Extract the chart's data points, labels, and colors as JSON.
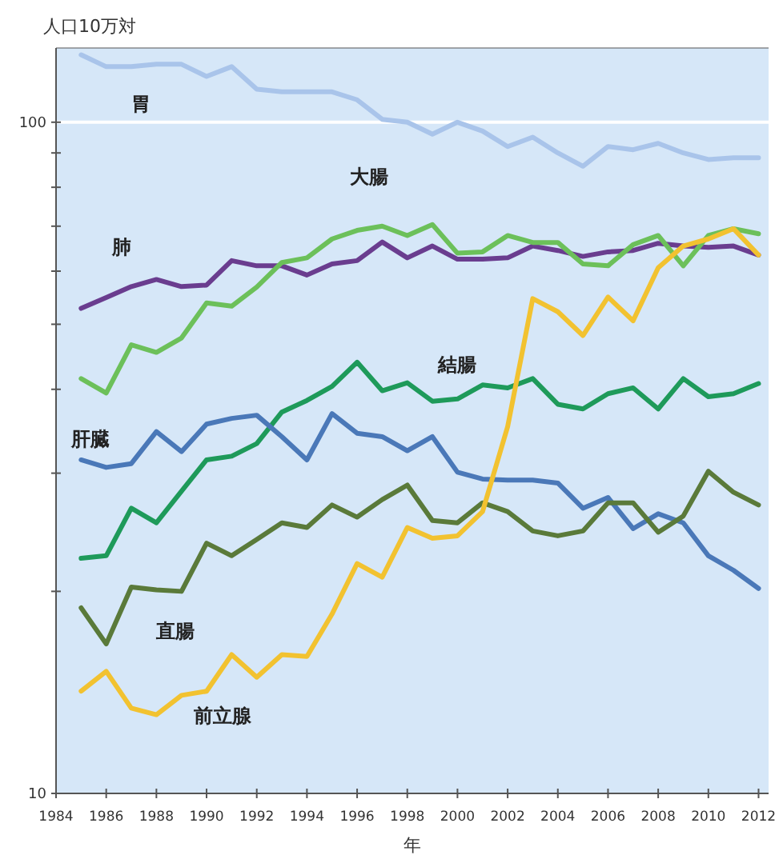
{
  "chart_data": {
    "type": "line",
    "xlabel": "年",
    "ylabel": "人口10万対",
    "log": "y",
    "x": [
      1985,
      1986,
      1987,
      1988,
      1989,
      1990,
      1991,
      1992,
      1993,
      1994,
      1995,
      1996,
      1997,
      1998,
      1999,
      2000,
      2001,
      2002,
      2003,
      2004,
      2005,
      2006,
      2007,
      2008,
      2009,
      2010,
      2011,
      2012
    ],
    "xlim": [
      1984,
      2012.4
    ],
    "xticks": [
      1984,
      1986,
      1988,
      1990,
      1992,
      1994,
      1996,
      1998,
      2000,
      2002,
      2004,
      2006,
      2008,
      2010,
      2012
    ],
    "ylim": [
      10,
      129
    ],
    "yticks": [
      10,
      {
        "value": 20,
        "label": null
      },
      {
        "value": 30,
        "label": null
      },
      {
        "value": 40,
        "label": null
      },
      {
        "value": 50,
        "label": null
      },
      {
        "value": 60,
        "label": null
      },
      {
        "value": 70,
        "label": null
      },
      {
        "value": 80,
        "label": null
      },
      {
        "value": 90,
        "label": null
      },
      100
    ],
    "ref_lines": [
      {
        "axis": "y",
        "value": 100,
        "color": "#ffffff"
      }
    ],
    "marker": "none",
    "line_style": "solid",
    "series": [
      {
        "name": "胃",
        "color": "#a9c4ea",
        "values": [
          126,
          121,
          121,
          122,
          122,
          117,
          121,
          112,
          111,
          111,
          111,
          108,
          101,
          100,
          96,
          100,
          97,
          92,
          95,
          90,
          86,
          92,
          91,
          93,
          90,
          88,
          88.5,
          88.5
        ]
      },
      {
        "name": "肺",
        "color": "#6a3d8f",
        "values": [
          52.8,
          54.8,
          56.9,
          58.3,
          56.9,
          57.2,
          62.2,
          61.1,
          61.1,
          59.2,
          61.5,
          62.2,
          66.3,
          62.8,
          65.4,
          62.5,
          62.5,
          62.8,
          65.4,
          64.4,
          63.1,
          64.1,
          64.4,
          66,
          65.4,
          65.1,
          65.4,
          63.4
        ]
      },
      {
        "name": "大腸",
        "color": "#6cc05a",
        "values": [
          41.5,
          39.5,
          46.6,
          45.4,
          47.7,
          53.8,
          53.2,
          56.8,
          61.8,
          62.8,
          67,
          69,
          70,
          67.8,
          70.4,
          63.8,
          64.1,
          67.8,
          66.2,
          66.2,
          61.5,
          61.1,
          65.7,
          67.8,
          61.1,
          67.8,
          69.4,
          68.2
        ]
      },
      {
        "name": "結腸",
        "color": "#1e9a5a",
        "values": [
          22.4,
          22.6,
          26.6,
          25.3,
          28.2,
          31.4,
          31.8,
          33.2,
          37.0,
          38.5,
          40.4,
          43.9,
          39.8,
          40.9,
          38.4,
          38.7,
          40.6,
          40.2,
          41.5,
          38.0,
          37.4,
          39.4,
          40.2,
          37.4,
          41.5,
          39.0,
          39.4,
          40.8
        ]
      },
      {
        "name": "肝臓",
        "color": "#4a78b8",
        "values": [
          31.4,
          30.6,
          31.0,
          34.6,
          32.3,
          35.5,
          36.2,
          36.6,
          34.0,
          31.4,
          36.8,
          34.4,
          34.0,
          32.4,
          34.0,
          30.1,
          29.4,
          29.3,
          29.3,
          29.0,
          26.6,
          27.6,
          24.8,
          26.1,
          25.3,
          22.6,
          21.5,
          20.2
        ]
      },
      {
        "name": "直腸",
        "color": "#5a7a3a",
        "values": [
          18.9,
          16.7,
          20.3,
          20.1,
          20,
          23.6,
          22.6,
          23.9,
          25.3,
          24.9,
          26.9,
          25.8,
          27.4,
          28.8,
          25.5,
          25.3,
          27.1,
          26.3,
          24.6,
          24.2,
          24.6,
          27.1,
          27.1,
          24.5,
          25.9,
          30.2,
          28.1,
          26.9
        ]
      },
      {
        "name": "前立腺",
        "color": "#f2c230",
        "values": [
          14.2,
          15.2,
          13.4,
          13.1,
          14.0,
          14.2,
          16.1,
          14.9,
          16.1,
          16.0,
          18.5,
          22.0,
          21.0,
          24.9,
          24.0,
          24.2,
          26.3,
          35.2,
          54.6,
          52.2,
          48.1,
          54.9,
          50.6,
          60.7,
          65.4,
          67.0,
          69.4,
          63.4
        ]
      }
    ]
  }
}
